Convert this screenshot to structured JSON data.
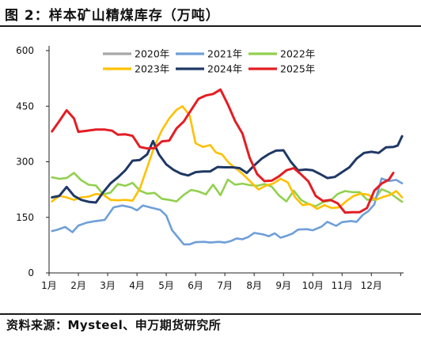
{
  "title": "图 2：样本矿山精煤库存（万吨）",
  "source": "资料来源：Mysteel、申万期货研究所",
  "chart_data": {
    "type": "line",
    "title": "图 2：样本矿山精煤库存（万吨）",
    "xlabel": "",
    "ylabel": "",
    "ylim": [
      0,
      600
    ],
    "yticks": [
      0,
      150,
      300,
      450,
      600
    ],
    "xlim": [
      1,
      13.1
    ],
    "categories": [
      "1月",
      "2月",
      "3月",
      "4月",
      "5月",
      "6月",
      "7月",
      "8月",
      "9月",
      "10月",
      "11月",
      "12月"
    ],
    "grid": false,
    "legend_position": "top",
    "series": [
      {
        "name": "2020年",
        "color": "#a6a6a6",
        "points": []
      },
      {
        "name": "2021年",
        "color": "#6f9fd8",
        "points": [
          [
            1.1,
            113
          ],
          [
            1.3,
            117
          ],
          [
            1.55,
            124
          ],
          [
            1.8,
            110
          ],
          [
            2.0,
            128
          ],
          [
            2.3,
            136
          ],
          [
            2.6,
            140
          ],
          [
            2.9,
            143
          ],
          [
            3.2,
            177
          ],
          [
            3.5,
            182
          ],
          [
            3.8,
            177
          ],
          [
            4.0,
            169
          ],
          [
            4.2,
            182
          ],
          [
            4.5,
            176
          ],
          [
            4.8,
            170
          ],
          [
            5.0,
            155
          ],
          [
            5.2,
            115
          ],
          [
            5.4,
            96
          ],
          [
            5.6,
            77
          ],
          [
            5.8,
            77
          ],
          [
            6.0,
            83
          ],
          [
            6.3,
            84
          ],
          [
            6.5,
            82
          ],
          [
            6.8,
            84
          ],
          [
            7.0,
            82
          ],
          [
            7.2,
            86
          ],
          [
            7.4,
            93
          ],
          [
            7.6,
            91
          ],
          [
            7.8,
            97
          ],
          [
            8.0,
            108
          ],
          [
            8.3,
            104
          ],
          [
            8.5,
            99
          ],
          [
            8.7,
            107
          ],
          [
            8.9,
            95
          ],
          [
            9.1,
            100
          ],
          [
            9.3,
            106
          ],
          [
            9.5,
            117
          ],
          [
            9.8,
            118
          ],
          [
            10.0,
            115
          ],
          [
            10.3,
            125
          ],
          [
            10.5,
            138
          ],
          [
            10.8,
            127
          ],
          [
            11.0,
            137
          ],
          [
            11.3,
            140
          ],
          [
            11.5,
            138
          ],
          [
            11.7,
            156
          ],
          [
            11.9,
            167
          ],
          [
            12.1,
            185
          ],
          [
            12.35,
            255
          ],
          [
            12.6,
            248
          ],
          [
            12.85,
            251
          ],
          [
            13.05,
            242
          ]
        ]
      },
      {
        "name": "2022年",
        "color": "#92d050",
        "points": [
          [
            1.1,
            258
          ],
          [
            1.35,
            254
          ],
          [
            1.6,
            256
          ],
          [
            1.85,
            270
          ],
          [
            2.1,
            250
          ],
          [
            2.35,
            238
          ],
          [
            2.6,
            236
          ],
          [
            2.85,
            212
          ],
          [
            3.1,
            217
          ],
          [
            3.35,
            240
          ],
          [
            3.6,
            235
          ],
          [
            3.85,
            243
          ],
          [
            4.1,
            222
          ],
          [
            4.35,
            214
          ],
          [
            4.6,
            216
          ],
          [
            4.85,
            200
          ],
          [
            5.1,
            197
          ],
          [
            5.35,
            193
          ],
          [
            5.6,
            211
          ],
          [
            5.85,
            224
          ],
          [
            6.1,
            220
          ],
          [
            6.35,
            212
          ],
          [
            6.6,
            238
          ],
          [
            6.85,
            210
          ],
          [
            7.1,
            252
          ],
          [
            7.35,
            238
          ],
          [
            7.6,
            241
          ],
          [
            7.85,
            237
          ],
          [
            8.1,
            235
          ],
          [
            8.35,
            240
          ],
          [
            8.6,
            233
          ],
          [
            8.85,
            209
          ],
          [
            9.1,
            193
          ],
          [
            9.35,
            222
          ],
          [
            9.6,
            197
          ],
          [
            9.85,
            186
          ],
          [
            10.1,
            180
          ],
          [
            10.35,
            191
          ],
          [
            10.6,
            195
          ],
          [
            10.85,
            213
          ],
          [
            11.1,
            221
          ],
          [
            11.35,
            218
          ],
          [
            11.6,
            218
          ],
          [
            11.85,
            198
          ],
          [
            12.1,
            197
          ],
          [
            12.35,
            226
          ],
          [
            12.6,
            218
          ],
          [
            12.85,
            203
          ],
          [
            13.05,
            192
          ]
        ]
      },
      {
        "name": "2023年",
        "color": "#ffc000",
        "points": [
          [
            1.1,
            193
          ],
          [
            1.35,
            208
          ],
          [
            1.6,
            204
          ],
          [
            1.85,
            197
          ],
          [
            2.1,
            204
          ],
          [
            2.35,
            206
          ],
          [
            2.6,
            213
          ],
          [
            2.85,
            211
          ],
          [
            3.1,
            197
          ],
          [
            3.35,
            196
          ],
          [
            3.6,
            197
          ],
          [
            3.85,
            195
          ],
          [
            4.1,
            228
          ],
          [
            4.35,
            285
          ],
          [
            4.6,
            342
          ],
          [
            4.85,
            385
          ],
          [
            5.1,
            417
          ],
          [
            5.35,
            440
          ],
          [
            5.55,
            450
          ],
          [
            5.8,
            425
          ],
          [
            6.0,
            350
          ],
          [
            6.25,
            340
          ],
          [
            6.5,
            345
          ],
          [
            6.7,
            325
          ],
          [
            6.9,
            320
          ],
          [
            7.15,
            296
          ],
          [
            7.4,
            281
          ],
          [
            7.65,
            264
          ],
          [
            7.9,
            244
          ],
          [
            8.15,
            225
          ],
          [
            8.4,
            236
          ],
          [
            8.65,
            241
          ],
          [
            8.9,
            254
          ],
          [
            9.15,
            244
          ],
          [
            9.4,
            204
          ],
          [
            9.65,
            183
          ],
          [
            9.9,
            186
          ],
          [
            10.15,
            173
          ],
          [
            10.4,
            183
          ],
          [
            10.65,
            175
          ],
          [
            10.9,
            177
          ],
          [
            11.15,
            194
          ],
          [
            11.4,
            208
          ],
          [
            11.65,
            214
          ],
          [
            11.9,
            211
          ],
          [
            12.15,
            197
          ],
          [
            12.4,
            205
          ],
          [
            12.65,
            211
          ],
          [
            12.85,
            221
          ],
          [
            13.05,
            204
          ]
        ]
      },
      {
        "name": "2024年",
        "color": "#1f3864",
        "points": [
          [
            1.1,
            204
          ],
          [
            1.35,
            208
          ],
          [
            1.6,
            232
          ],
          [
            1.85,
            208
          ],
          [
            2.1,
            197
          ],
          [
            2.35,
            192
          ],
          [
            2.6,
            190
          ],
          [
            2.85,
            218
          ],
          [
            3.1,
            242
          ],
          [
            3.35,
            258
          ],
          [
            3.6,
            277
          ],
          [
            3.85,
            303
          ],
          [
            4.1,
            305
          ],
          [
            4.35,
            320
          ],
          [
            4.55,
            356
          ],
          [
            4.75,
            320
          ],
          [
            5.0,
            293
          ],
          [
            5.25,
            278
          ],
          [
            5.5,
            268
          ],
          [
            5.75,
            263
          ],
          [
            6.0,
            272
          ],
          [
            6.25,
            274
          ],
          [
            6.5,
            274
          ],
          [
            6.75,
            286
          ],
          [
            7.0,
            285
          ],
          [
            7.25,
            285
          ],
          [
            7.5,
            283
          ],
          [
            7.75,
            270
          ],
          [
            8.0,
            290
          ],
          [
            8.25,
            308
          ],
          [
            8.5,
            321
          ],
          [
            8.75,
            330
          ],
          [
            9.0,
            331
          ],
          [
            9.25,
            300
          ],
          [
            9.5,
            277
          ],
          [
            9.75,
            279
          ],
          [
            10.0,
            277
          ],
          [
            10.25,
            267
          ],
          [
            10.5,
            256
          ],
          [
            10.75,
            259
          ],
          [
            11.0,
            272
          ],
          [
            11.25,
            285
          ],
          [
            11.5,
            309
          ],
          [
            11.75,
            324
          ],
          [
            12.0,
            327
          ],
          [
            12.25,
            324
          ],
          [
            12.5,
            339
          ],
          [
            12.75,
            340
          ],
          [
            12.9,
            344
          ],
          [
            13.05,
            369
          ]
        ]
      },
      {
        "name": "2025年",
        "color": "#e31e24",
        "points": [
          [
            1.1,
            382
          ],
          [
            1.35,
            410
          ],
          [
            1.6,
            439
          ],
          [
            1.85,
            417
          ],
          [
            2.0,
            381
          ],
          [
            2.3,
            384
          ],
          [
            2.6,
            387
          ],
          [
            2.9,
            387
          ],
          [
            3.15,
            384
          ],
          [
            3.35,
            373
          ],
          [
            3.6,
            374
          ],
          [
            3.85,
            370
          ],
          [
            4.1,
            340
          ],
          [
            4.35,
            336
          ],
          [
            4.6,
            337
          ],
          [
            4.85,
            355
          ],
          [
            5.1,
            357
          ],
          [
            5.35,
            390
          ],
          [
            5.6,
            409
          ],
          [
            5.85,
            440
          ],
          [
            6.1,
            470
          ],
          [
            6.35,
            479
          ],
          [
            6.6,
            483
          ],
          [
            6.85,
            495
          ],
          [
            7.1,
            455
          ],
          [
            7.35,
            410
          ],
          [
            7.6,
            376
          ],
          [
            7.85,
            310
          ],
          [
            8.1,
            267
          ],
          [
            8.35,
            248
          ],
          [
            8.6,
            249
          ],
          [
            8.85,
            261
          ],
          [
            9.1,
            277
          ],
          [
            9.35,
            283
          ],
          [
            9.6,
            266
          ],
          [
            9.85,
            247
          ],
          [
            10.1,
            208
          ],
          [
            10.35,
            194
          ],
          [
            10.6,
            197
          ],
          [
            10.85,
            188
          ],
          [
            11.1,
            163
          ],
          [
            11.35,
            164
          ],
          [
            11.6,
            164
          ],
          [
            11.85,
            175
          ],
          [
            12.1,
            222
          ],
          [
            12.35,
            241
          ],
          [
            12.6,
            252
          ],
          [
            12.75,
            270
          ]
        ]
      }
    ]
  }
}
